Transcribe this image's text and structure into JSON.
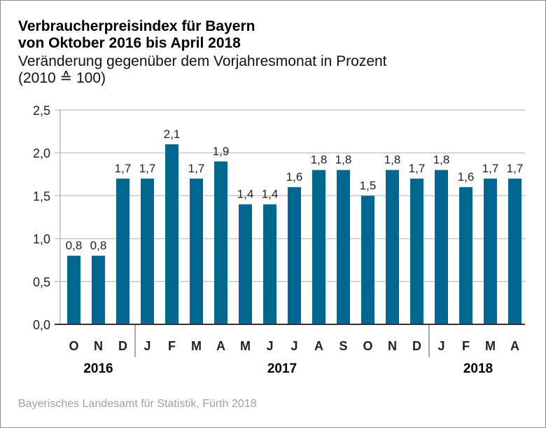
{
  "header": {
    "title_line1": "Verbraucherpreisindex für Bayern",
    "title_line2": "von Oktober 2016 bis April 2018",
    "subtitle_line1": "Veränderung gegenüber dem Vorjahresmonat in Prozent",
    "subtitle_line2": "(2010 ≙ 100)"
  },
  "footer": {
    "source": "Bayerisches Landesamt für Statistik, Fürth 2018"
  },
  "colors": {
    "bar": "#006890",
    "grid": "#c8c8c8",
    "axis": "#333333"
  },
  "chart_data": {
    "type": "bar",
    "title": "Verbraucherpreisindex für Bayern von Oktober 2016 bis April 2018",
    "subtitle": "Veränderung gegenüber dem Vorjahresmonat in Prozent (2010 ≙ 100)",
    "xlabel": "",
    "ylabel": "",
    "ylim": [
      0,
      2.5
    ],
    "yticks": [
      0,
      0.5,
      1.0,
      1.5,
      2.0,
      2.5
    ],
    "ytick_labels": [
      "0,0",
      "0,5",
      "1,0",
      "1,5",
      "2,0",
      "2,5"
    ],
    "grid": true,
    "categories": [
      "O",
      "N",
      "D",
      "J",
      "F",
      "M",
      "A",
      "M",
      "J",
      "J",
      "A",
      "S",
      "O",
      "N",
      "D",
      "J",
      "F",
      "M",
      "A"
    ],
    "values": [
      0.8,
      0.8,
      1.7,
      1.7,
      2.1,
      1.7,
      1.9,
      1.4,
      1.4,
      1.6,
      1.8,
      1.8,
      1.5,
      1.8,
      1.7,
      1.8,
      1.6,
      1.7,
      1.7
    ],
    "value_labels": [
      "0,8",
      "0,8",
      "1,7",
      "1,7",
      "2,1",
      "1,7",
      "1,9",
      "1,4",
      "1,4",
      "1,6",
      "1,8",
      "1,8",
      "1,5",
      "1,8",
      "1,7",
      "1,8",
      "1,6",
      "1,7",
      "1,7"
    ],
    "year_groups": [
      {
        "label": "2016",
        "start": 0,
        "end": 2
      },
      {
        "label": "2017",
        "start": 3,
        "end": 14
      },
      {
        "label": "2018",
        "start": 15,
        "end": 18
      }
    ]
  }
}
